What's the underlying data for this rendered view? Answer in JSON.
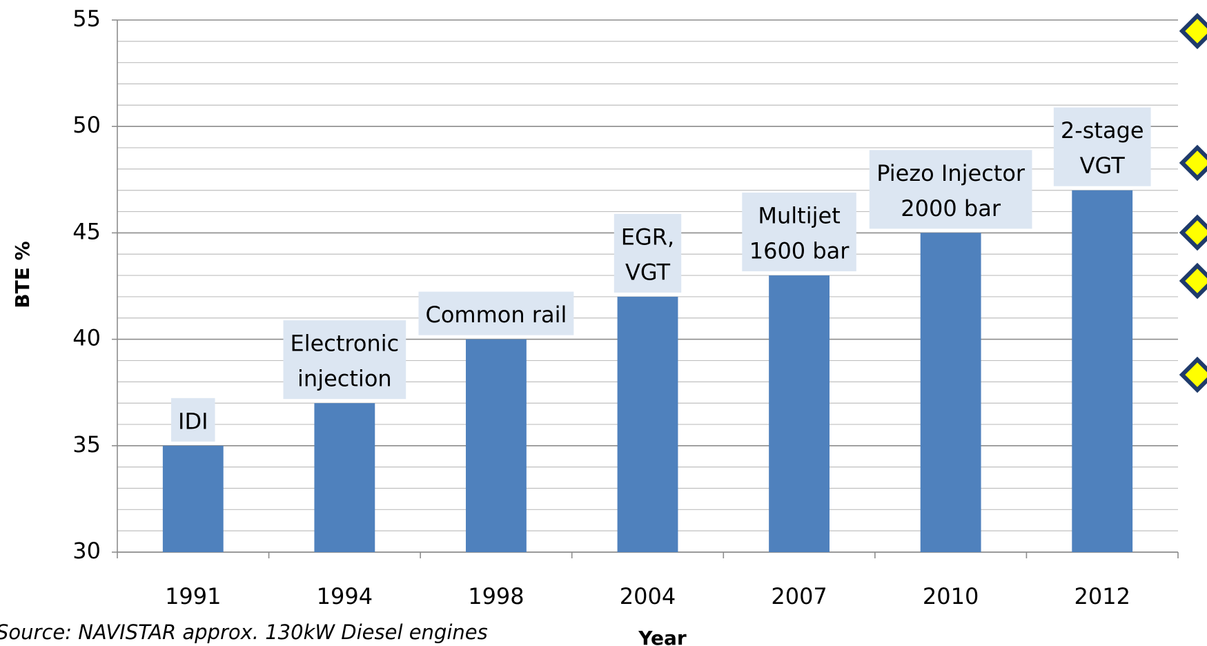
{
  "chart_data": {
    "type": "bar",
    "y_label": "BTE %",
    "x_label": "Year",
    "source": "Source: NAVISTAR approx. 130kW Diesel engines",
    "categories": [
      "1991",
      "1994",
      "1998",
      "2004",
      "2007",
      "2010",
      "2012"
    ],
    "values": [
      35,
      37,
      40,
      42,
      43,
      45,
      47
    ],
    "annotations": [
      [
        "IDI"
      ],
      [
        "Electronic",
        "injection"
      ],
      [
        "Common rail"
      ],
      [
        "EGR,",
        "VGT"
      ],
      [
        "Multijet",
        "1600 bar"
      ],
      [
        "Piezo Injector",
        "2000 bar"
      ],
      [
        "2-stage",
        "VGT"
      ]
    ],
    "color": "#4f81bd",
    "annotation_box_color": "#dce6f2",
    "ylim": [
      30,
      55
    ],
    "yticks": [
      30,
      35,
      40,
      45,
      50,
      55
    ],
    "yticks_minor": [
      31,
      32,
      33,
      34,
      36,
      37,
      38,
      39,
      41,
      42,
      43,
      44,
      46,
      47,
      48,
      49,
      51,
      52,
      53,
      54
    ],
    "grid": true
  }
}
